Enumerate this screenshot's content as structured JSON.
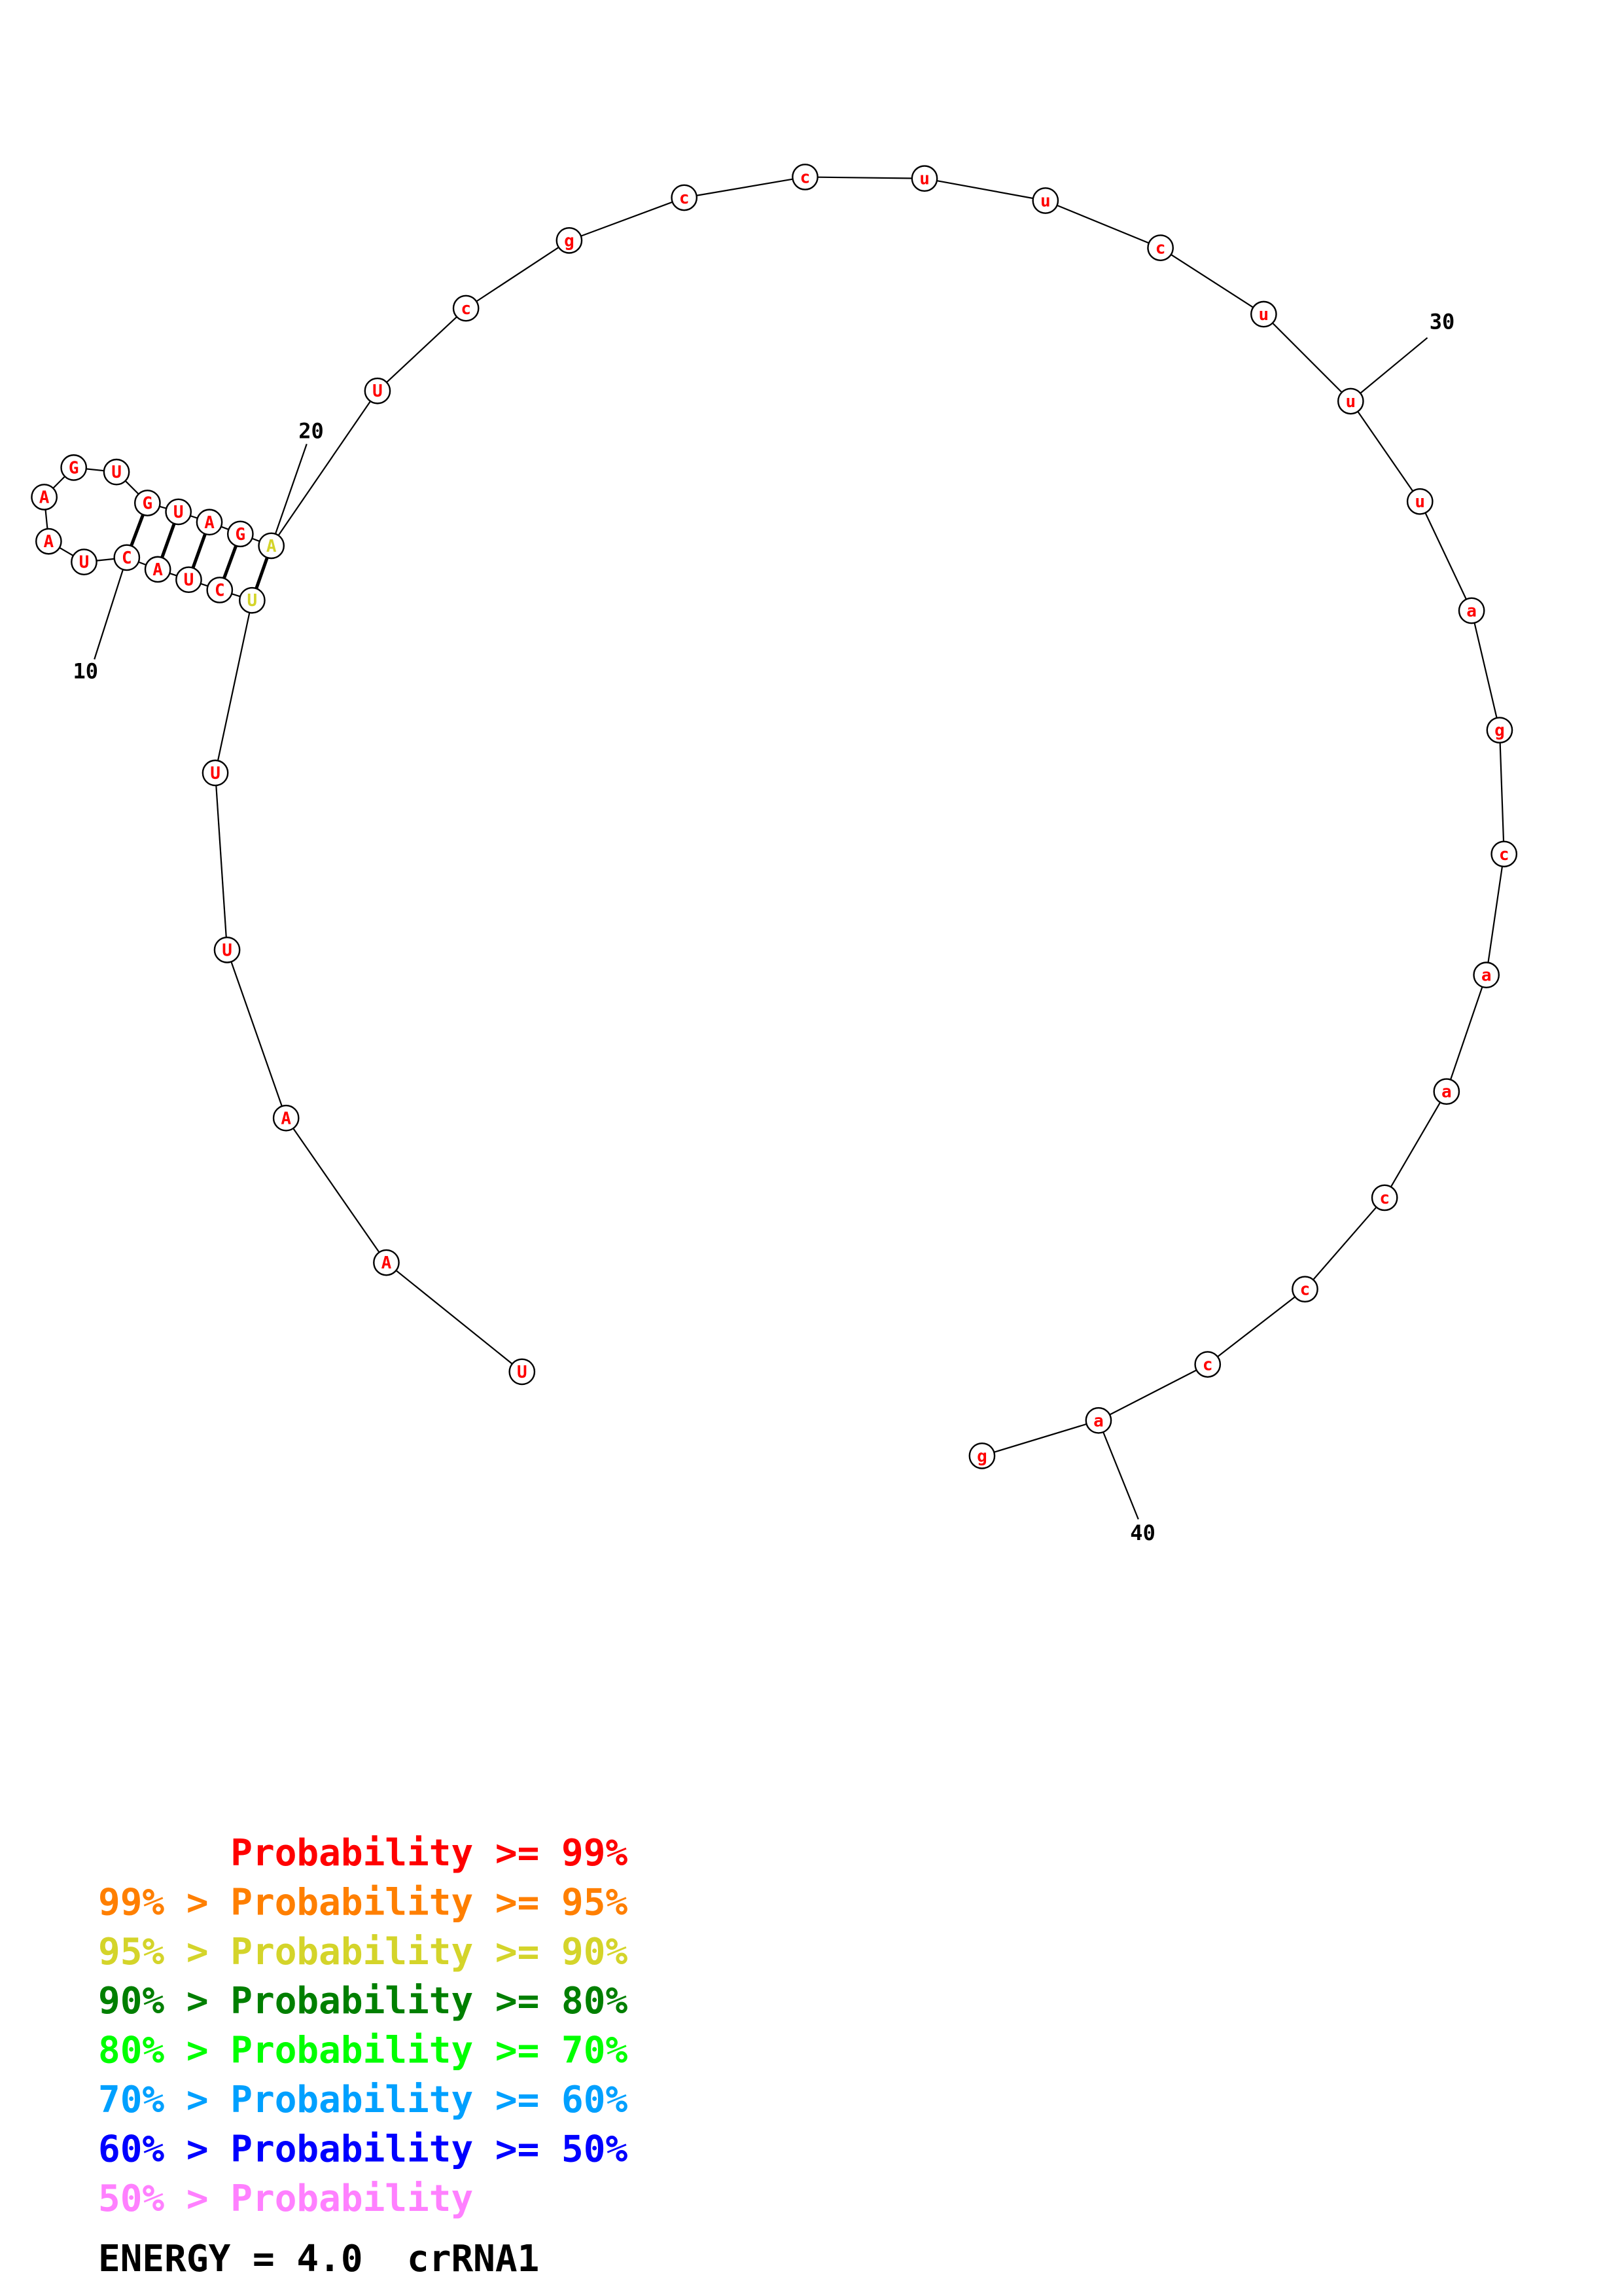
{
  "structure": {
    "sequence": [
      "U",
      "A",
      "A",
      "U",
      "U",
      "U",
      "C",
      "U",
      "A",
      "C",
      "U",
      "A",
      "A",
      "G",
      "U",
      "G",
      "U",
      "A",
      "G",
      "A",
      "U",
      "c",
      "g",
      "c",
      "c",
      "u",
      "u",
      "c",
      "u",
      "u",
      "u",
      "a",
      "g",
      "c",
      "a",
      "a",
      "c",
      "c",
      "c",
      "a",
      "g"
    ],
    "colors": [
      "red",
      "red",
      "red",
      "red",
      "red",
      "yellow",
      "red",
      "red",
      "red",
      "red",
      "red",
      "red",
      "red",
      "red",
      "red",
      "red",
      "red",
      "red",
      "red",
      "yellow",
      "red",
      "red",
      "red",
      "red",
      "red",
      "red",
      "red",
      "red",
      "red",
      "red",
      "red",
      "red",
      "red",
      "red",
      "red",
      "red",
      "red",
      "red",
      "red",
      "red",
      "red"
    ],
    "pairs": [
      [
        6,
        20
      ],
      [
        7,
        19
      ],
      [
        8,
        18
      ],
      [
        9,
        17
      ],
      [
        10,
        16
      ]
    ],
    "numbers": [
      {
        "index": 10,
        "text": "10"
      },
      {
        "index": 20,
        "text": "20"
      },
      {
        "index": 30,
        "text": "30"
      },
      {
        "index": 40,
        "text": "40"
      }
    ]
  },
  "palette": {
    "red": "#ff0000",
    "orange": "#ff7f00",
    "yellow": "#d4d42a",
    "darkgreen": "#007f00",
    "green": "#00ff00",
    "cyan": "#00a0ff",
    "blue": "#0000ff",
    "pink": "#ff80ff"
  },
  "legend": [
    {
      "text": "      Probability >= 99%",
      "color": "#ff0000"
    },
    {
      "text": "99% > Probability >= 95%",
      "color": "#ff7f00"
    },
    {
      "text": "95% > Probability >= 90%",
      "color": "#d4d42a"
    },
    {
      "text": "90% > Probability >= 80%",
      "color": "#007f00"
    },
    {
      "text": "80% > Probability >= 70%",
      "color": "#00ff00"
    },
    {
      "text": "70% > Probability >= 60%",
      "color": "#00a0ff"
    },
    {
      "text": "60% > Probability >= 50%",
      "color": "#0000ff"
    },
    {
      "text": "50% > Probability",
      "color": "#ff80ff"
    }
  ],
  "energy": {
    "text": "ENERGY = 4.0  crRNA1"
  }
}
